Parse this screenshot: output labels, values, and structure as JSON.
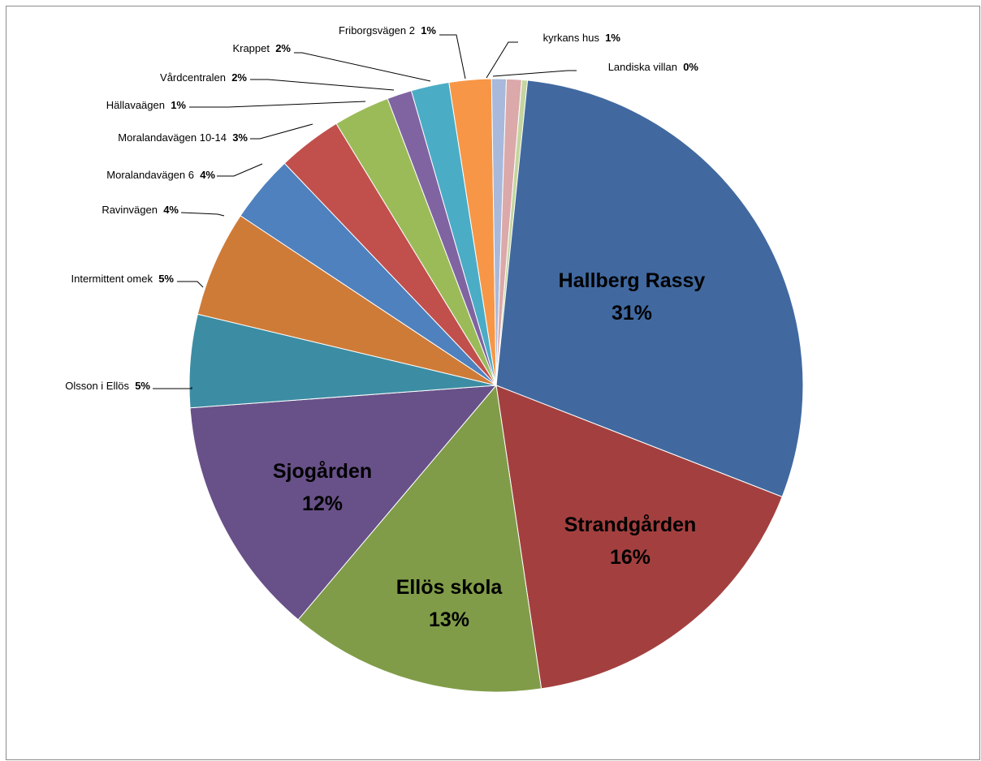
{
  "chart_data": {
    "type": "pie",
    "title": "",
    "slices": [
      {
        "label": "Hallberg Rassy",
        "value": 31,
        "display": "31%",
        "color": "#4169a0"
      },
      {
        "label": "Strandgården",
        "value": 16,
        "display": "16%",
        "color": "#a3403f"
      },
      {
        "label": "Ellös skola",
        "value": 13,
        "display": "13%",
        "color": "#809c48"
      },
      {
        "label": "Sjogården",
        "value": 12,
        "display": "12%",
        "color": "#685188"
      },
      {
        "label": "Olsson i Ellös",
        "value": 5,
        "display": "5%",
        "color": "#3c8da3"
      },
      {
        "label": "Intermittent omek",
        "value": 5,
        "display": "5%",
        "color": "#cf7b38"
      },
      {
        "label": "Ravinvägen",
        "value": 4,
        "display": "4%",
        "color": "#4e81be"
      },
      {
        "label": "Moralandavägen 6",
        "value": 4,
        "display": "4%",
        "color": "#c1504d"
      },
      {
        "label": "Moralandavägen 10-14",
        "value": 3,
        "display": "3%",
        "color": "#9bbb59"
      },
      {
        "label": "Hällavaägen",
        "value": 1,
        "display": "1%",
        "color": "#8064a2"
      },
      {
        "label": "Vårdcentralen",
        "value": 2,
        "display": "2%",
        "color": "#4bacc6"
      },
      {
        "label": "Krappet",
        "value": 2,
        "display": "2%",
        "color": "#f79646"
      },
      {
        "label": "Friborgsvägen 2",
        "value": 1,
        "display": "1%",
        "color": "#a8b9db"
      },
      {
        "label": "kyrkans hus",
        "value": 1,
        "display": "1%",
        "color": "#dba9a9"
      },
      {
        "label": "Landiska villan",
        "value": 0,
        "display": "0%",
        "color": "#c4d6a0"
      }
    ]
  }
}
